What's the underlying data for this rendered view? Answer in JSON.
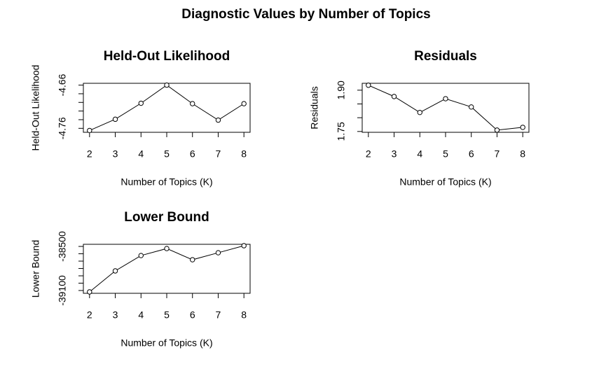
{
  "title": "Diagnostic Values by Number of Topics",
  "chart_data": [
    {
      "type": "line",
      "title": "Held-Out Likelihood",
      "x_label": "Number of Topics (K)",
      "y_label": "Held-Out Likelihood",
      "x": [
        2,
        3,
        4,
        5,
        6,
        7,
        8
      ],
      "values": [
        -4.765,
        -4.739,
        -4.702,
        -4.66,
        -4.703,
        -4.741,
        -4.703
      ],
      "color": "#000000",
      "xlim": [
        1.76,
        8.24
      ],
      "xticks": [
        2,
        3,
        4,
        5,
        6,
        7,
        8
      ],
      "ylim": [
        -4.7692,
        -4.6558
      ],
      "yticks": [
        -4.66,
        {
          "value": -4.68,
          "label": null
        },
        {
          "value": -4.7,
          "label": null
        },
        {
          "value": -4.72,
          "label": null
        },
        {
          "value": -4.74,
          "label": null
        },
        -4.76
      ]
    },
    {
      "type": "line",
      "title": "Residuals",
      "x_label": "Number of Topics (K)",
      "y_label": "Residuals",
      "x": [
        2,
        3,
        4,
        5,
        6,
        7,
        8
      ],
      "values": [
        1.918,
        1.877,
        1.819,
        1.869,
        1.839,
        1.755,
        1.765
      ],
      "color": "#000000",
      "xlim": [
        1.76,
        8.24
      ],
      "xticks": [
        2,
        3,
        4,
        5,
        6,
        7,
        8
      ],
      "ylim": [
        1.747,
        1.925
      ],
      "yticks": [
        {
          "value": 1.75,
          "label": "1.75"
        },
        {
          "value": 1.8,
          "label": null
        },
        {
          "value": 1.85,
          "label": null
        },
        {
          "value": 1.9,
          "label": "1.90"
        }
      ]
    },
    {
      "type": "line",
      "title": "Lower Bound",
      "x_label": "Number of Topics (K)",
      "y_label": "Lower Bound",
      "x": [
        2,
        3,
        4,
        5,
        6,
        7,
        8
      ],
      "values": [
        -39119,
        -38833,
        -38624,
        -38529,
        -38681,
        -38586,
        -38490
      ],
      "color": "#000000",
      "xlim": [
        1.76,
        8.24
      ],
      "xticks": [
        2,
        3,
        4,
        5,
        6,
        7,
        8
      ],
      "ylim": [
        -39138,
        -38471
      ],
      "yticks": [
        -39100,
        {
          "value": -39000,
          "label": null
        },
        {
          "value": -38900,
          "label": null
        },
        {
          "value": -38800,
          "label": null
        },
        {
          "value": -38700,
          "label": null
        },
        {
          "value": -38600,
          "label": null
        },
        -38500
      ]
    }
  ]
}
